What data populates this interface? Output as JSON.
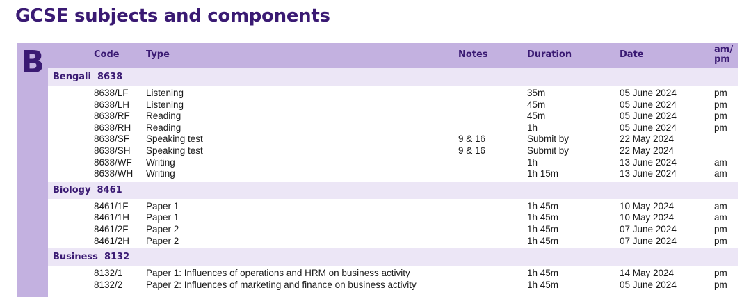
{
  "page": {
    "title": "GCSE subjects and components",
    "section_letter": "B"
  },
  "table": {
    "headers": {
      "code": "Code",
      "type": "Type",
      "notes": "Notes",
      "duration": "Duration",
      "date": "Date",
      "ampm_line1": "am/",
      "ampm_line2": "pm"
    },
    "subjects": [
      {
        "name": "Bengali  8638",
        "rows": [
          {
            "code": "8638/LF",
            "type": "Listening",
            "notes": "",
            "duration": "35m",
            "date": "05 June 2024",
            "ampm": "pm"
          },
          {
            "code": "8638/LH",
            "type": "Listening",
            "notes": "",
            "duration": "45m",
            "date": "05 June 2024",
            "ampm": "pm"
          },
          {
            "code": "8638/RF",
            "type": "Reading",
            "notes": "",
            "duration": "45m",
            "date": "05 June 2024",
            "ampm": "pm"
          },
          {
            "code": "8638/RH",
            "type": "Reading",
            "notes": "",
            "duration": "1h",
            "date": "05 June 2024",
            "ampm": "pm"
          },
          {
            "code": "8638/SF",
            "type": "Speaking test",
            "notes": "9 & 16",
            "duration": "Submit by",
            "date": "22 May 2024",
            "ampm": ""
          },
          {
            "code": "8638/SH",
            "type": "Speaking test",
            "notes": "9 & 16",
            "duration": "Submit by",
            "date": "22 May 2024",
            "ampm": ""
          },
          {
            "code": "8638/WF",
            "type": "Writing",
            "notes": "",
            "duration": "1h",
            "date": "13 June 2024",
            "ampm": "am"
          },
          {
            "code": "8638/WH",
            "type": "Writing",
            "notes": "",
            "duration": "1h 15m",
            "date": "13 June 2024",
            "ampm": "am"
          }
        ]
      },
      {
        "name": "Biology  8461",
        "rows": [
          {
            "code": "8461/1F",
            "type": "Paper 1",
            "notes": "",
            "duration": "1h 45m",
            "date": "10 May 2024",
            "ampm": "am"
          },
          {
            "code": "8461/1H",
            "type": "Paper 1",
            "notes": "",
            "duration": "1h 45m",
            "date": "10 May 2024",
            "ampm": "am"
          },
          {
            "code": "8461/2F",
            "type": "Paper 2",
            "notes": "",
            "duration": "1h 45m",
            "date": "07 June 2024",
            "ampm": "pm"
          },
          {
            "code": "8461/2H",
            "type": "Paper 2",
            "notes": "",
            "duration": "1h 45m",
            "date": "07 June 2024",
            "ampm": "pm"
          }
        ]
      },
      {
        "name": "Business  8132",
        "rows": [
          {
            "code": "8132/1",
            "type": "Paper 1: Influences of operations and HRM on business activity",
            "notes": "",
            "duration": "1h 45m",
            "date": "14 May 2024",
            "ampm": "pm"
          },
          {
            "code": "8132/2",
            "type": "Paper 2: Influences of marketing and finance on business activity",
            "notes": "",
            "duration": "1h 45m",
            "date": "05 June 2024",
            "ampm": "pm"
          }
        ]
      }
    ]
  },
  "colors": {
    "accent_dark": "#3a1a73",
    "header_bg": "#c3b1e0",
    "subject_bg": "#ece6f6"
  }
}
